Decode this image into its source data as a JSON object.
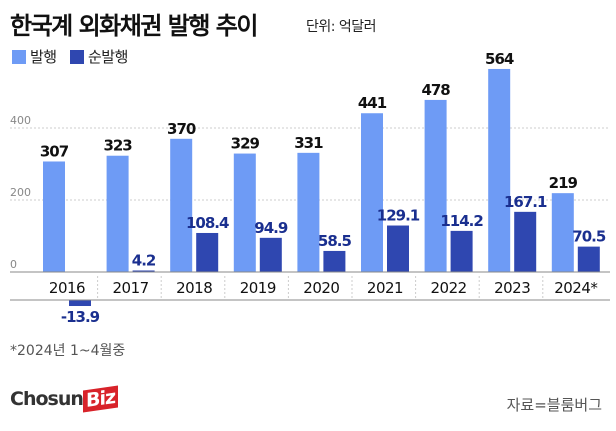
{
  "chart_data": {
    "type": "bar",
    "title": "한국계 외화채권 발행 추이",
    "unit": "단위: 억달러",
    "categories": [
      "2016",
      "2017",
      "2018",
      "2019",
      "2020",
      "2021",
      "2022",
      "2023",
      "2024*"
    ],
    "series": [
      {
        "name": "발행",
        "color": "#6e9bf5",
        "label_color": "#111111",
        "values": [
          307,
          323,
          370,
          329,
          331,
          441,
          478,
          564,
          219
        ]
      },
      {
        "name": "순발행",
        "color": "#2f47b0",
        "label_color": "#1a2f8f",
        "values": [
          -13.9,
          4.2,
          108.4,
          94.9,
          58.5,
          129.1,
          114.2,
          167.1,
          70.5
        ]
      }
    ],
    "yticks": [
      0,
      200,
      400
    ],
    "ylim": [
      0,
      600
    ],
    "footnote": "*2024년 1~4월중",
    "source": "자료=블룸버그"
  },
  "logo": {
    "text1": "Chosun",
    "text2": "Biz"
  }
}
